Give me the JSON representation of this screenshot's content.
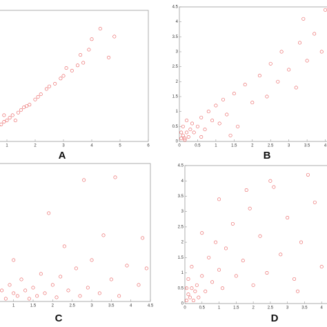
{
  "chart_data": [
    {
      "type": "scatter",
      "title": "A",
      "color": "#e02020",
      "x": [
        0.1,
        0.2,
        0.3,
        0.3,
        0.4,
        0.5,
        0.5,
        0.6,
        0.6,
        0.7,
        0.8,
        0.9,
        0.9,
        1.0,
        1.1,
        1.2,
        1.3,
        1.4,
        1.5,
        1.6,
        1.7,
        1.8,
        2.0,
        2.1,
        2.2,
        2.4,
        2.5,
        2.7,
        2.9,
        3.0,
        3.1,
        3.3,
        3.5,
        3.6,
        3.7,
        3.9,
        4.0,
        4.3,
        4.6,
        4.8
      ],
      "y": [
        0.1,
        0.2,
        0.35,
        0.2,
        0.3,
        0.45,
        0.6,
        0.5,
        0.4,
        0.6,
        0.65,
        0.75,
        1.0,
        0.8,
        0.9,
        1.0,
        0.8,
        1.1,
        1.2,
        1.3,
        1.35,
        1.4,
        1.6,
        1.7,
        1.8,
        2.0,
        2.1,
        2.2,
        2.4,
        2.5,
        2.8,
        2.7,
        2.9,
        3.3,
        3.0,
        3.5,
        3.9,
        4.3,
        3.2,
        4.0
      ],
      "xlim": [
        0,
        6
      ],
      "ylim": [
        0,
        5
      ],
      "xticks": [
        1,
        2,
        3,
        4,
        5,
        6
      ]
    },
    {
      "type": "scatter",
      "title": "B",
      "color": "#e02020",
      "x": [
        0.05,
        0.1,
        0.15,
        0.2,
        0.25,
        0.3,
        0.1,
        0.35,
        0.4,
        0.5,
        0.05,
        0.2,
        0.6,
        0.7,
        0.8,
        0.9,
        1.0,
        1.1,
        1.2,
        1.3,
        1.5,
        1.6,
        1.8,
        2.0,
        2.2,
        2.4,
        2.5,
        2.7,
        2.8,
        3.0,
        3.2,
        3.3,
        3.5,
        3.7,
        3.9,
        4.0,
        3.4,
        1.4,
        0.6,
        0.15
      ],
      "y": [
        0.1,
        0.2,
        0.1,
        0.3,
        0.15,
        0.4,
        0.5,
        0.6,
        0.3,
        0.5,
        0.3,
        0.7,
        0.8,
        0.4,
        1.0,
        0.7,
        1.2,
        0.6,
        1.4,
        0.9,
        1.6,
        0.5,
        1.9,
        1.3,
        2.2,
        1.5,
        2.6,
        2.0,
        3.0,
        2.4,
        1.8,
        3.3,
        2.7,
        3.6,
        3.0,
        4.4,
        4.1,
        0.2,
        0.15,
        0.05
      ],
      "xlim": [
        0,
        4.5
      ],
      "ylim": [
        0,
        4.5
      ],
      "xticks": [
        0,
        0.5,
        1,
        1.5,
        2,
        2.5,
        3,
        3.5,
        4
      ],
      "yticks": [
        0,
        0.5,
        1,
        1.5,
        2,
        2.5,
        3,
        3.5,
        4,
        4.5
      ]
    },
    {
      "type": "scatter",
      "title": "C",
      "color": "#e02020",
      "x": [
        0.2,
        0.3,
        0.4,
        0.5,
        0.6,
        0.7,
        0.8,
        0.9,
        1.0,
        1.1,
        1.2,
        1.3,
        1.4,
        1.5,
        1.6,
        1.7,
        1.8,
        2.0,
        2.1,
        2.2,
        2.4,
        2.6,
        2.7,
        2.9,
        3.0,
        3.2,
        3.5,
        3.7,
        3.9,
        4.2,
        4.4,
        1.9,
        2.8,
        3.6,
        4.3,
        0.6,
        1.0,
        2.3,
        3.3,
        0.4
      ],
      "y": [
        0.1,
        0.3,
        0.15,
        0.5,
        0.2,
        0.4,
        0.1,
        0.6,
        0.3,
        0.2,
        0.8,
        0.4,
        0.1,
        0.5,
        0.2,
        1.0,
        0.3,
        0.6,
        0.15,
        0.9,
        0.4,
        1.2,
        0.2,
        0.5,
        1.5,
        0.3,
        0.8,
        0.2,
        1.3,
        0.6,
        1.2,
        3.2,
        4.4,
        4.5,
        2.3,
        1.2,
        1.5,
        2.0,
        2.4,
        0.8
      ],
      "xlim": [
        0,
        4.5
      ],
      "ylim": [
        0,
        5
      ],
      "xticks": [
        1,
        1.5,
        2,
        2.5,
        3,
        3.5,
        4,
        4.5
      ]
    },
    {
      "type": "scatter",
      "title": "D",
      "color": "#e02020",
      "x": [
        0.05,
        0.1,
        0.15,
        0.2,
        0.25,
        0.3,
        0.1,
        0.35,
        0.4,
        0.5,
        0.05,
        0.2,
        0.6,
        0.7,
        0.8,
        0.9,
        1.0,
        1.1,
        1.2,
        1.4,
        1.5,
        1.7,
        1.9,
        2.0,
        2.2,
        2.4,
        2.6,
        2.8,
        3.0,
        3.2,
        3.4,
        3.6,
        3.8,
        4.0,
        2.5,
        1.8,
        1.0,
        0.5,
        3.3,
        4.3
      ],
      "y": [
        0.1,
        0.3,
        0.2,
        0.5,
        0.1,
        0.4,
        0.8,
        0.6,
        0.2,
        0.9,
        0.5,
        1.2,
        0.4,
        1.5,
        0.7,
        2.0,
        1.1,
        0.5,
        1.8,
        2.6,
        0.9,
        1.4,
        3.1,
        0.6,
        2.2,
        1.0,
        3.8,
        1.6,
        2.8,
        0.8,
        2.0,
        4.2,
        3.3,
        1.2,
        4.0,
        3.7,
        3.4,
        2.3,
        0.4,
        4.5
      ],
      "xlim": [
        0,
        4.5
      ],
      "ylim": [
        0,
        4.5
      ],
      "xticks": [
        0,
        0.5,
        1,
        1.5,
        2,
        2.5,
        3,
        3.5,
        4
      ],
      "yticks": [
        0,
        0.5,
        1,
        1.5,
        2,
        2.5,
        3,
        3.5,
        4,
        4.5
      ]
    }
  ]
}
